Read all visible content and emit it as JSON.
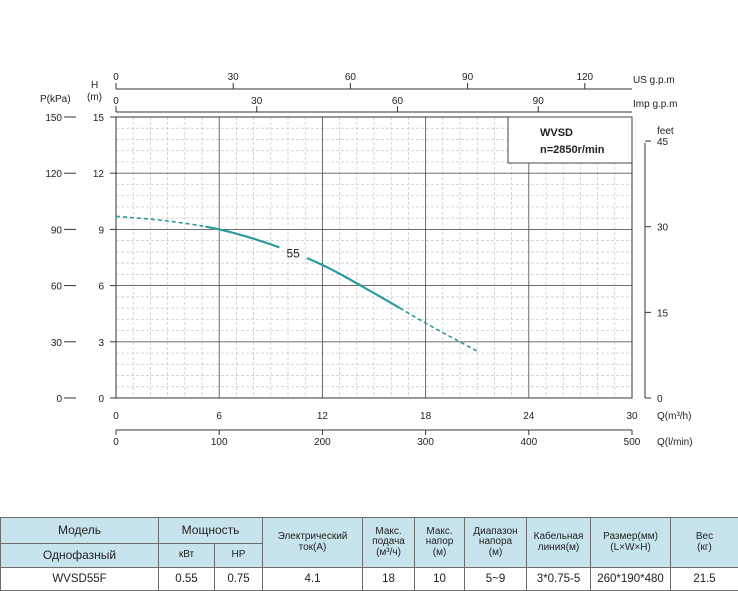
{
  "chart_data": {
    "type": "line",
    "model_box": {
      "line1": "WVSD",
      "line2": "n=2850r/min"
    },
    "curve_label": "55",
    "colors": {
      "curve": "#2d9b9e",
      "grid_major": "#5a5a5a",
      "grid_minor": "#c6c6c6"
    },
    "axes": {
      "left_outer": {
        "label1": "P(kPa)",
        "ticks": [
          "0",
          "30",
          "60",
          "90",
          "120",
          "150"
        ]
      },
      "left_inner": {
        "label1": "H",
        "label2": "(m)",
        "ticks": [
          "0",
          "3",
          "6",
          "9",
          "12",
          "15"
        ]
      },
      "right": {
        "label": "feet",
        "ticks": [
          "0",
          "15",
          "30",
          "45"
        ],
        "values": [
          0,
          15,
          30,
          45
        ]
      },
      "top_us": {
        "label": "US g.p.m",
        "ticks": [
          "0",
          "30",
          "60",
          "90",
          "120"
        ],
        "values": [
          0,
          30,
          60,
          90,
          120
        ]
      },
      "top_imp": {
        "label": "Imp g.p.m",
        "ticks": [
          "0",
          "30",
          "60",
          "90"
        ],
        "values": [
          0,
          30,
          60,
          90
        ]
      },
      "bottom_q_m3h": {
        "label": "Q(m³/h)",
        "ticks": [
          "0",
          "6",
          "12",
          "18",
          "24",
          "30"
        ]
      },
      "bottom_q_lmin": {
        "label": "Q(l/min)",
        "ticks": [
          "0",
          "100",
          "200",
          "300",
          "400",
          "500"
        ]
      }
    },
    "xlim": [
      0,
      30
    ],
    "ylim": [
      0,
      15
    ],
    "xlabel": "Q(m³/h)",
    "ylabel": "H (m)",
    "series": [
      {
        "name": "55",
        "x": [
          0,
          3,
          6,
          9,
          12,
          15,
          16.5,
          18,
          21
        ],
        "y": [
          9.7,
          9.45,
          9.0,
          8.2,
          7.1,
          5.6,
          4.8,
          4.0,
          2.5
        ],
        "dashed_ranges": [
          [
            0,
            5.2
          ],
          [
            16.5,
            21
          ]
        ]
      }
    ]
  },
  "table": {
    "headers": {
      "model": "Модель",
      "power": "Мощность",
      "current": "Электрический ток(А)",
      "max_flow": "Макс. подача",
      "max_flow_unit": "(м³/ч)",
      "max_head": "Макс. напор",
      "max_head_unit": "(м)",
      "head_range": "Диапазон напора",
      "head_range_unit": "(м)",
      "cable": "Кабельная линия(м)",
      "size": "Размер(мм)",
      "size_unit": "(L×W×H)",
      "weight": "Вес",
      "weight_unit": "(кг)",
      "single_phase": "Однофазный",
      "kw": "кВт",
      "hp": "HP"
    },
    "rows": [
      {
        "model": "WVSD55F",
        "kw": "0.55",
        "hp": "0.75",
        "current": "4.1",
        "max_flow": "18",
        "max_head": "10",
        "head_range": "5~9",
        "cable": "3*0.75-5",
        "size": "260*190*480",
        "weight": "21.5"
      }
    ]
  }
}
